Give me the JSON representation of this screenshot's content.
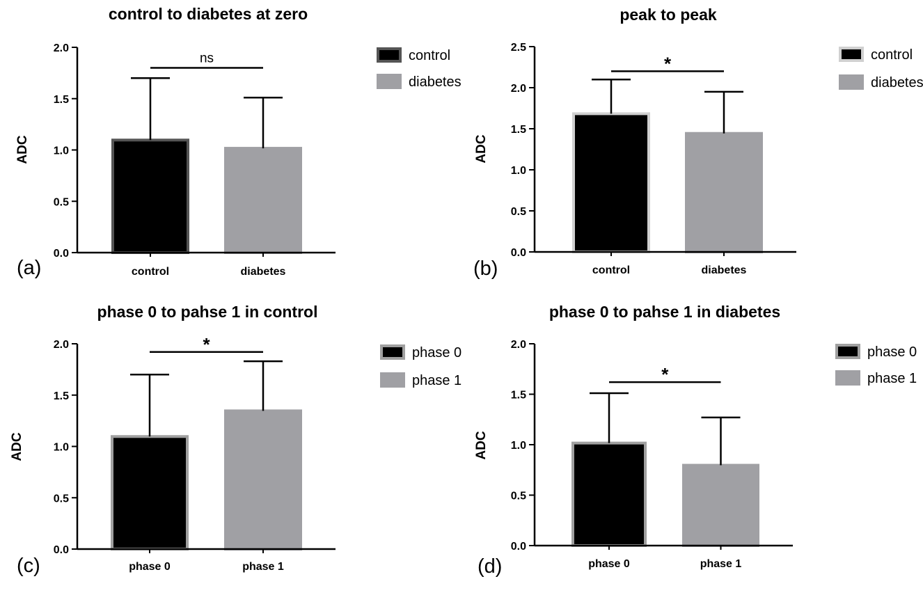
{
  "chart_data": [
    {
      "type": "bar",
      "panel_label": "(a)",
      "title": "control to diabetes at zero",
      "xlabel": "",
      "ylabel": "ADC",
      "ylim": [
        0,
        2.0
      ],
      "yticks": [
        "0.0",
        "0.5",
        "1.0",
        "1.5",
        "2.0"
      ],
      "categories": [
        "control",
        "diabetes"
      ],
      "values": [
        1.11,
        1.03
      ],
      "errors": [
        0.59,
        0.48
      ],
      "legend": [
        "control",
        "diabetes"
      ],
      "colors": [
        "#000000",
        "#a0a0a4"
      ],
      "edge_colors": [
        "#555555",
        "#a0a0a4"
      ],
      "significance": "ns",
      "significance_level": 1.8
    },
    {
      "type": "bar",
      "panel_label": "(b)",
      "title": "peak to peak",
      "xlabel": "",
      "ylabel": "ADC",
      "ylim": [
        0,
        2.5
      ],
      "yticks": [
        "0.0",
        "0.5",
        "1.0",
        "1.5",
        "2.0",
        "2.5"
      ],
      "categories": [
        "control",
        "diabetes"
      ],
      "values": [
        1.7,
        1.46
      ],
      "errors": [
        0.4,
        0.49
      ],
      "legend": [
        "control",
        "diabetes"
      ],
      "colors": [
        "#000000",
        "#a0a0a4"
      ],
      "edge_colors": [
        "#d0d0d0",
        "#a0a0a4"
      ],
      "significance": "*",
      "significance_level": 2.2
    },
    {
      "type": "bar",
      "panel_label": "(c)",
      "title": "phase 0 to pahse 1 in control",
      "xlabel": "",
      "ylabel": "ADC",
      "ylim": [
        0,
        2.0
      ],
      "yticks": [
        "0.0",
        "0.5",
        "1.0",
        "1.5",
        "2.0"
      ],
      "categories": [
        "phase 0",
        "phase 1"
      ],
      "values": [
        1.11,
        1.36
      ],
      "errors": [
        0.59,
        0.47
      ],
      "legend": [
        "phase 0",
        "phase 1"
      ],
      "colors": [
        "#000000",
        "#a0a0a4"
      ],
      "edge_colors": [
        "#a0a0a0",
        "#a0a0a4"
      ],
      "significance": "*",
      "significance_level": 1.92
    },
    {
      "type": "bar",
      "panel_label": "(d)",
      "title": "phase 0 to pahse 1 in diabetes",
      "xlabel": "",
      "ylabel": "ADC",
      "ylim": [
        0,
        2.0
      ],
      "yticks": [
        "0.0",
        "0.5",
        "1.0",
        "1.5",
        "2.0"
      ],
      "categories": [
        "phase 0",
        "phase 1"
      ],
      "values": [
        1.03,
        0.81
      ],
      "errors": [
        0.48,
        0.46
      ],
      "legend": [
        "phase 0",
        "phase 1"
      ],
      "colors": [
        "#000000",
        "#a0a0a4"
      ],
      "edge_colors": [
        "#a0a0a0",
        "#a0a0a4"
      ],
      "significance": "*",
      "significance_level": 1.62
    }
  ]
}
